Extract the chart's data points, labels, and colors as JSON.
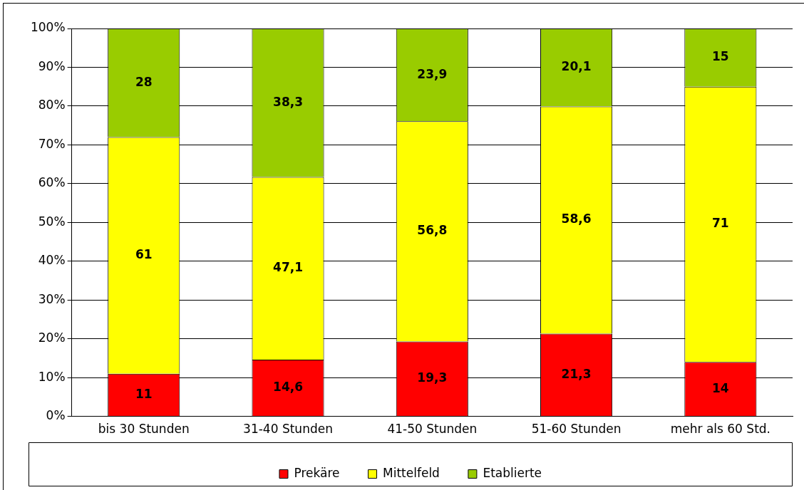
{
  "chart_data": {
    "type": "bar",
    "stacked": true,
    "categories": [
      "bis 30 Stunden",
      "31-40 Stunden",
      "41-50 Stunden",
      "51-60 Stunden",
      "mehr als 60 Std."
    ],
    "series": [
      {
        "name": "Prekäre",
        "color": "#ff0000",
        "values": [
          11,
          14.6,
          19.3,
          21.3,
          14
        ],
        "value_labels": [
          "11",
          "14,6",
          "19,3",
          "21,3",
          "14"
        ]
      },
      {
        "name": "Mittelfeld",
        "color": "#ffff00",
        "values": [
          61,
          47.1,
          56.8,
          58.6,
          71
        ],
        "value_labels": [
          "61",
          "47,1",
          "56,8",
          "58,6",
          "71"
        ]
      },
      {
        "name": "Etablierte",
        "color": "#99cc00",
        "values": [
          28,
          38.3,
          23.9,
          20.1,
          15
        ],
        "value_labels": [
          "28",
          "38,3",
          "23,9",
          "20,1",
          "15"
        ]
      }
    ],
    "ylim": [
      0,
      100
    ],
    "yticks": [
      {
        "value": 0,
        "label": "0%"
      },
      {
        "value": 10,
        "label": "10%"
      },
      {
        "value": 20,
        "label": "20%"
      },
      {
        "value": 30,
        "label": "30%"
      },
      {
        "value": 40,
        "label": "40%"
      },
      {
        "value": 50,
        "label": "50%"
      },
      {
        "value": 60,
        "label": "60%"
      },
      {
        "value": 70,
        "label": "70%"
      },
      {
        "value": 80,
        "label": "80%"
      },
      {
        "value": 90,
        "label": "90%"
      },
      {
        "value": 100,
        "label": "100%"
      }
    ],
    "grid": "y",
    "legend": "bottom"
  }
}
